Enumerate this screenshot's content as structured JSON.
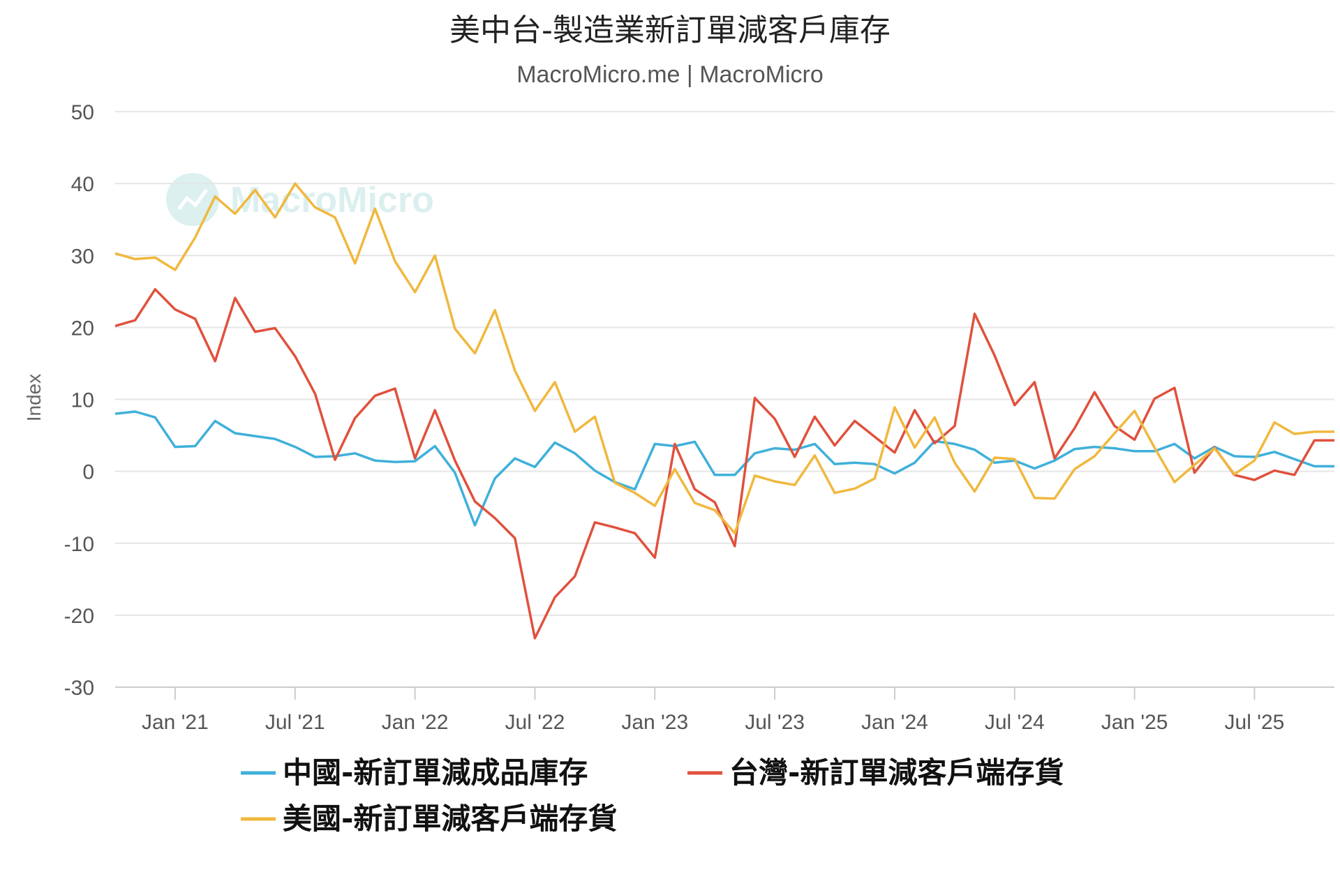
{
  "chart_data": {
    "type": "line",
    "title": "美中台-製造業新訂單減客戶庫存",
    "subtitle": "MacroMicro.me | MacroMicro",
    "watermark": "MacroMicro",
    "ylabel": "Index",
    "ylim": [
      -30,
      50
    ],
    "yticks": [
      -30,
      -20,
      -10,
      0,
      10,
      20,
      30,
      40,
      50
    ],
    "grid": true,
    "legend_position": "bottom",
    "x_start": "2020-10",
    "x_end": "2025-11",
    "xticks": [
      {
        "date": "2021-01",
        "label": "Jan '21"
      },
      {
        "date": "2021-07",
        "label": "Jul '21"
      },
      {
        "date": "2022-01",
        "label": "Jan '22"
      },
      {
        "date": "2022-07",
        "label": "Jul '22"
      },
      {
        "date": "2023-01",
        "label": "Jan '23"
      },
      {
        "date": "2023-07",
        "label": "Jul '23"
      },
      {
        "date": "2024-01",
        "label": "Jan '24"
      },
      {
        "date": "2024-07",
        "label": "Jul '24"
      },
      {
        "date": "2025-01",
        "label": "Jan '25"
      },
      {
        "date": "2025-07",
        "label": "Jul '25"
      }
    ],
    "x": [
      "2020-10",
      "2020-11",
      "2020-12",
      "2021-01",
      "2021-02",
      "2021-03",
      "2021-04",
      "2021-05",
      "2021-06",
      "2021-07",
      "2021-08",
      "2021-09",
      "2021-10",
      "2021-11",
      "2021-12",
      "2022-01",
      "2022-02",
      "2022-03",
      "2022-04",
      "2022-05",
      "2022-06",
      "2022-07",
      "2022-08",
      "2022-09",
      "2022-10",
      "2022-11",
      "2022-12",
      "2023-01",
      "2023-02",
      "2023-03",
      "2023-04",
      "2023-05",
      "2023-06",
      "2023-07",
      "2023-08",
      "2023-09",
      "2023-10",
      "2023-11",
      "2023-12",
      "2024-01",
      "2024-02",
      "2024-03",
      "2024-04",
      "2024-05",
      "2024-06",
      "2024-07",
      "2024-08",
      "2024-09",
      "2024-10",
      "2024-11",
      "2024-12",
      "2025-01",
      "2025-02",
      "2025-03",
      "2025-04",
      "2025-05",
      "2025-06",
      "2025-07",
      "2025-08",
      "2025-09",
      "2025-10",
      "2025-11"
    ],
    "series": [
      {
        "name": "中國-新訂單減成品庫存",
        "color": "#3fb0da",
        "values": [
          8.0,
          8.3,
          7.5,
          3.4,
          3.5,
          7.0,
          5.3,
          4.9,
          4.5,
          3.4,
          2.0,
          2.1,
          2.5,
          1.5,
          1.3,
          1.4,
          3.5,
          -0.2,
          -7.5,
          -1.0,
          1.8,
          0.6,
          4.0,
          2.5,
          0.1,
          -1.5,
          -2.5,
          3.8,
          3.5,
          4.1,
          -0.5,
          -0.5,
          2.5,
          3.2,
          3.0,
          3.8,
          1.0,
          1.2,
          1.0,
          -0.3,
          1.2,
          4.2,
          3.8,
          3.0,
          1.2,
          1.5,
          0.4,
          1.5,
          3.1,
          3.4,
          3.2,
          2.8,
          2.8,
          3.8,
          1.8,
          3.4,
          2.1,
          2.0,
          2.7,
          1.7,
          0.7,
          0.7
        ]
      },
      {
        "name": "台灣-新訂單減客戶端存貨",
        "color": "#e0513d",
        "values": [
          20.2,
          21.0,
          25.3,
          22.5,
          21.2,
          15.3,
          24.1,
          19.4,
          19.9,
          16.0,
          10.8,
          1.6,
          7.4,
          10.5,
          11.5,
          1.8,
          8.5,
          1.5,
          -4.2,
          -6.5,
          -9.3,
          -23.2,
          -17.5,
          -14.6,
          -7.1,
          -7.8,
          -8.6,
          -12.0,
          3.8,
          -2.5,
          -4.3,
          -10.4,
          10.2,
          7.3,
          2.0,
          7.6,
          3.6,
          7.0,
          4.8,
          2.6,
          8.5,
          3.9,
          6.3,
          21.9,
          16.1,
          9.2,
          12.4,
          1.8,
          6.0,
          11.0,
          6.3,
          4.4,
          10.1,
          11.6,
          -0.2,
          3.3,
          -0.5,
          -1.2,
          0.1,
          -0.5,
          4.3,
          4.3
        ]
      },
      {
        "name": "美國-新訂單減客戶端存貨",
        "color": "#f0b83e",
        "values": [
          30.3,
          29.5,
          29.7,
          28.0,
          32.5,
          38.2,
          35.8,
          39.1,
          35.3,
          40.0,
          36.7,
          35.3,
          28.9,
          36.5,
          29.2,
          24.9,
          30.0,
          19.8,
          16.4,
          22.4,
          14.0,
          8.4,
          12.4,
          5.5,
          7.6,
          -1.6,
          -3.0,
          -4.8,
          0.3,
          -4.4,
          -5.4,
          -8.6,
          -0.6,
          -1.4,
          -1.9,
          2.2,
          -3.0,
          -2.4,
          -1.0,
          8.9,
          3.3,
          7.5,
          1.2,
          -2.8,
          1.9,
          1.7,
          -3.7,
          -3.8,
          0.3,
          2.1,
          5.3,
          8.4,
          3.3,
          -1.5,
          0.9,
          3.2,
          -0.4,
          1.5,
          6.8,
          5.2,
          5.5,
          5.5
        ]
      }
    ]
  }
}
